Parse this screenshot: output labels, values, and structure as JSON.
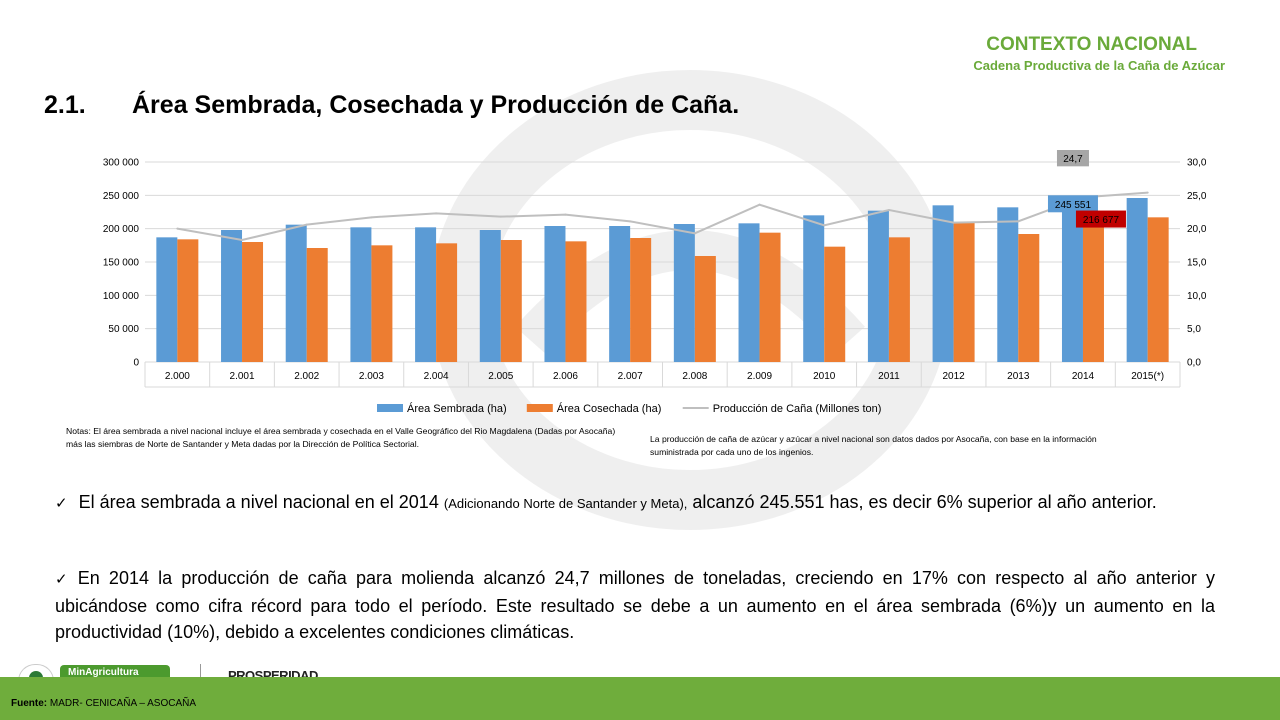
{
  "header": {
    "title": "CONTEXTO NACIONAL",
    "subtitle": "Cadena Productiva de la Caña de Azúcar"
  },
  "section": {
    "number": "2.1.",
    "title": "Área Sembrada, Cosechada y Producción de Caña."
  },
  "chart_data": {
    "type": "bar",
    "categories": [
      "2.000",
      "2.001",
      "2.002",
      "2.003",
      "2.004",
      "2.005",
      "2.006",
      "2.007",
      "2.008",
      "2.009",
      "2010",
      "2011",
      "2012",
      "2013",
      "2014",
      "2015(*)"
    ],
    "series": [
      {
        "name": "Área Sembrada (ha)",
        "type": "bar",
        "axis": "left",
        "color": "#5b9bd5",
        "values": [
          187000,
          198000,
          206000,
          202000,
          202000,
          198000,
          204000,
          204000,
          207000,
          208000,
          220000,
          227000,
          235000,
          232000,
          245551,
          246000
        ]
      },
      {
        "name": "Área Cosechada (ha)",
        "type": "bar",
        "axis": "left",
        "color": "#ed7d31",
        "values": [
          184000,
          180000,
          171000,
          175000,
          178000,
          183000,
          181000,
          186000,
          159000,
          194000,
          173000,
          187000,
          210000,
          192000,
          216677,
          217000
        ]
      },
      {
        "name": "Producción de Caña (Millones ton)",
        "type": "line",
        "axis": "right",
        "color": "#bfbfbf",
        "values": [
          20.0,
          18.3,
          20.6,
          21.7,
          22.3,
          21.8,
          22.1,
          21.1,
          19.3,
          23.6,
          20.5,
          22.8,
          20.9,
          21.1,
          24.7,
          25.4
        ]
      }
    ],
    "y_left": {
      "ticks": [
        "0",
        "50 000",
        "100 000",
        "150 000",
        "200 000",
        "250 000",
        "300 000"
      ],
      "ylim": [
        0,
        300000
      ]
    },
    "y_right": {
      "ticks": [
        "0,0",
        "5,0",
        "10,0",
        "15,0",
        "20,0",
        "25,0",
        "30,0"
      ],
      "ylim": [
        0,
        30
      ]
    },
    "annotations": [
      {
        "text": "24,7",
        "series": "Producción de Caña (Millones ton)",
        "category": "2014",
        "bg": "#a6a6a6"
      },
      {
        "text": "245 551",
        "series": "Área Sembrada (ha)",
        "category": "2014",
        "bg": "#5b9bd5"
      },
      {
        "text": "216 677",
        "series": "Área Cosechada (ha)",
        "category": "2014",
        "bg": "#c00000"
      }
    ],
    "legend_position": "bottom",
    "grid": true
  },
  "notes": {
    "left": "Notas: El área sembrada a nivel nacional incluye el área sembrada y cosechada en el Valle Geográfico del Rio Magdalena (Dadas por Asocaña) más las siembras de Norte de Santander y Meta dadas por la Dirección de Política Sectorial.",
    "right": "La producción de caña de azúcar y azúcar a nivel nacional son datos dados por Asocaña, con base en la información suministrada por cada uno de los ingenios."
  },
  "bullets": {
    "b1_pre": "El área sembrada a nivel nacional en el 2014",
    "b1_small": "(Adicionando Norte de Santander y Meta),",
    "b1_post": "alcanzó 245.551  has, es decir 6% superior al año  anterior.",
    "b2": "En 2014 la producción de caña para molienda  alcanzó 24,7 millones de toneladas, creciendo en 17% con respecto al año anterior y ubicándose como cifra récord para todo el período.  Este resultado se debe a un  aumento en el área sembrada (6%)y un aumento en la productividad (10%), debido a excelentes condiciones climáticas."
  },
  "footer": {
    "source_label": "Fuente:",
    "source_text": "MADR- CENICAÑA – ASOCAÑA",
    "logo_min": "MinAgricultura",
    "logo_pros": "PROSPERIDAD"
  },
  "colors": {
    "accent_green": "#6aaa3a",
    "footer_green": "#6fad3c"
  }
}
